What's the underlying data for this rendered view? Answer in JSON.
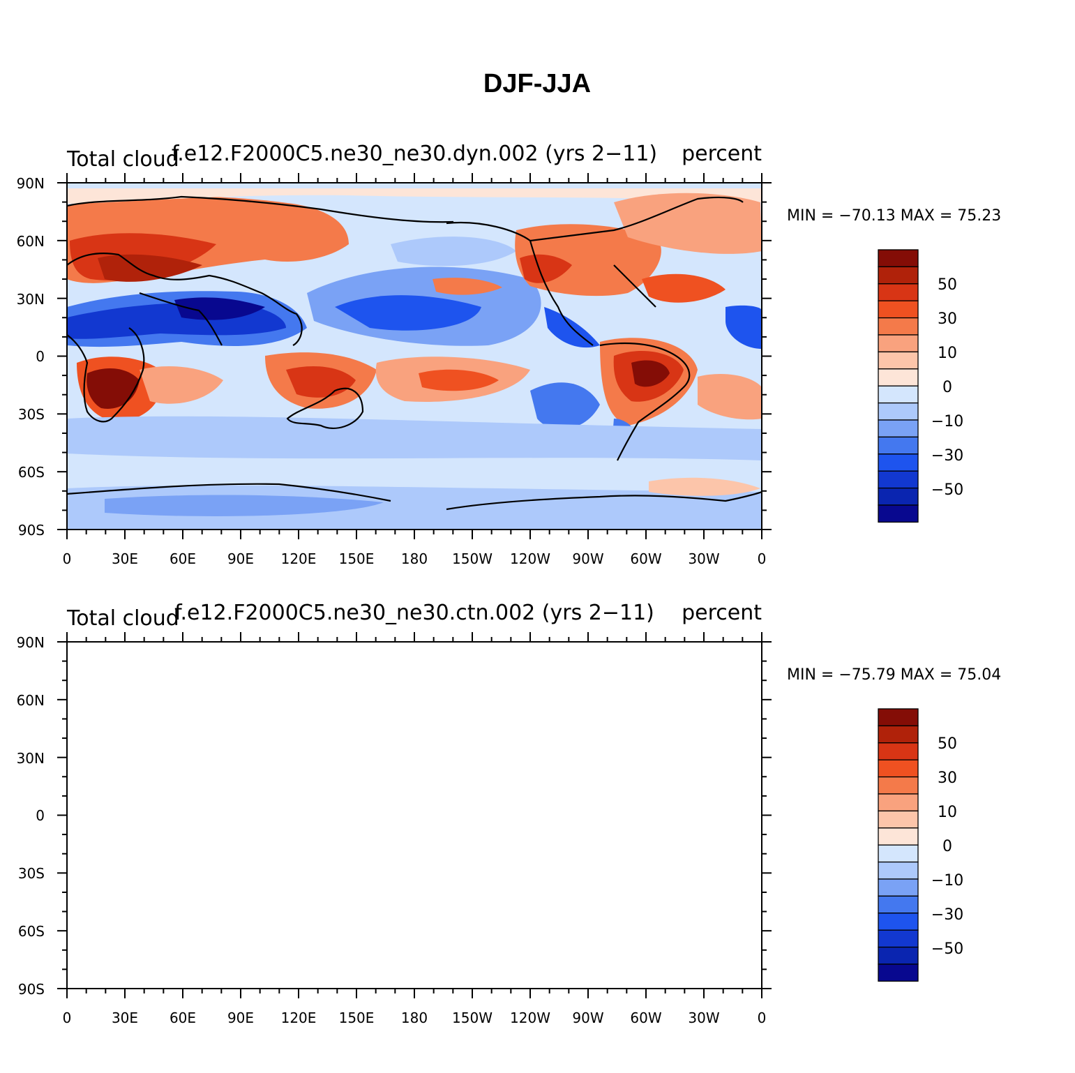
{
  "figure": {
    "title": "DJF-JJA",
    "colors": {
      "levels": [
        "#08088f",
        "#0a25b0",
        "#1238d0",
        "#1e54ee",
        "#4478ef",
        "#7aa2f5",
        "#adc9fb",
        "#d4e6fd",
        "#fde5d8",
        "#fcc5aa",
        "#f9a27e",
        "#f47a4a",
        "#ef5121",
        "#d83515",
        "#b0220a",
        "#840d06"
      ],
      "coast": "#000000"
    }
  },
  "colorbar": {
    "labels": [
      "50",
      "30",
      "10",
      "0",
      "−10",
      "−30",
      "−50"
    ],
    "levels": [
      -60,
      -50,
      -40,
      -30,
      -20,
      -10,
      -5,
      0,
      5,
      10,
      20,
      30,
      40,
      50,
      60
    ]
  },
  "panels": [
    {
      "id": "dyn",
      "left_title": "Total cloud",
      "center_title": "f.e12.F2000C5.ne30_ne30.dyn.002 (yrs 2−11)",
      "right_title": "percent",
      "stats": "MIN = −70.13 MAX =   75.23",
      "ylabels": [
        "90N",
        "60N",
        "30N",
        "0",
        "30S",
        "60S",
        "90S"
      ],
      "xlabels": [
        "0",
        "30E",
        "60E",
        "90E",
        "120E",
        "150E",
        "180",
        "150W",
        "120W",
        "90W",
        "60W",
        "30W",
        "0"
      ],
      "chart_data": {
        "type": "heatmap",
        "variable": "Total cloud difference DJF minus JJA",
        "units": "percent",
        "xlim": [
          0,
          360
        ],
        "ylim": [
          -90,
          90
        ],
        "min": -70.13,
        "max": 75.23
      }
    },
    {
      "id": "ctn",
      "left_title": "Total cloud",
      "center_title": "f.e12.F2000C5.ne30_ne30.ctn.002 (yrs 2−11)",
      "right_title": "percent",
      "stats": "MIN = −75.79 MAX =   75.04",
      "ylabels": [
        "90N",
        "60N",
        "30N",
        "0",
        "30S",
        "60S",
        "90S"
      ],
      "xlabels": [
        "0",
        "30E",
        "60E",
        "90E",
        "120E",
        "150E",
        "180",
        "150W",
        "120W",
        "90W",
        "60W",
        "30W",
        "0"
      ],
      "chart_data": {
        "type": "heatmap",
        "variable": "Total cloud difference DJF minus JJA",
        "units": "percent",
        "xlim": [
          0,
          360
        ],
        "ylim": [
          -90,
          90
        ],
        "min": -75.79,
        "max": 75.04
      }
    }
  ]
}
